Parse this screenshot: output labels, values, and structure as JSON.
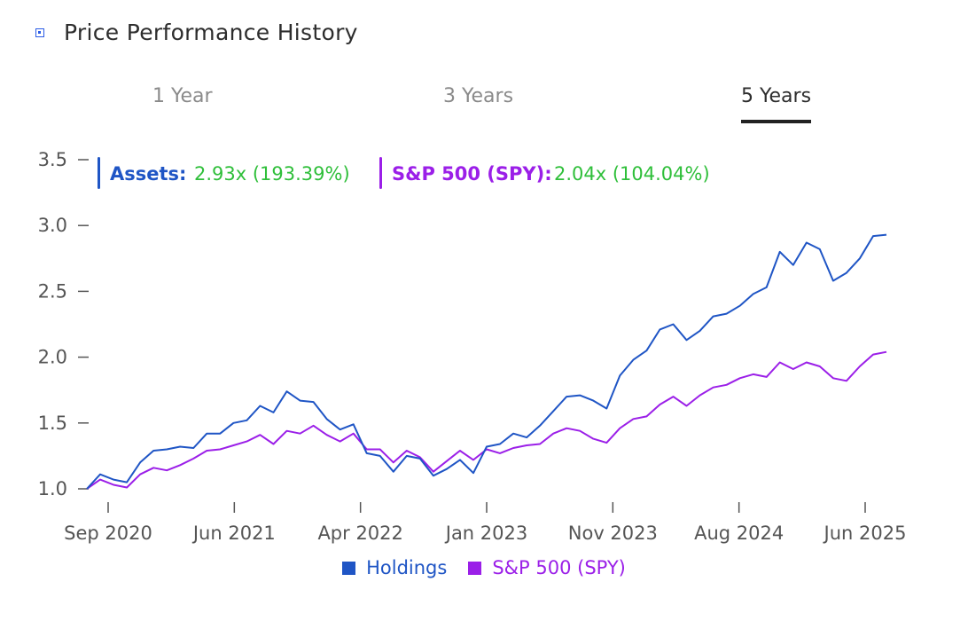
{
  "header": {
    "title": "Price Performance History",
    "icon": "square-dot-icon"
  },
  "tabs": [
    {
      "label": "1 Year",
      "active": false
    },
    {
      "label": "3 Years",
      "active": false
    },
    {
      "label": "5 Years",
      "active": true
    }
  ],
  "colors": {
    "holdings": "#1f55c5",
    "spy": "#9b1fe8",
    "value_green": "#2fbf3a"
  },
  "tooltip": {
    "assets": {
      "label": "Assets:",
      "value": "2.93x (193.39%)"
    },
    "spy": {
      "label": "S&P 500 (SPY):",
      "value": "2.04x (104.04%)"
    }
  },
  "chart_data": {
    "type": "line",
    "title": "",
    "xlabel": "",
    "ylabel": "",
    "ylim": [
      1.0,
      3.5
    ],
    "y_ticks": [
      "1.0",
      "1.5",
      "2.0",
      "2.5",
      "3.0",
      "3.5"
    ],
    "x_ticks": [
      "Sep 2020",
      "Jun 2021",
      "Apr 2022",
      "Jan 2023",
      "Nov 2023",
      "Aug 2024",
      "Jun 2025"
    ],
    "grid": false,
    "legend_position": "bottom",
    "series": [
      {
        "name": "Holdings",
        "values": [
          1.0,
          1.11,
          1.07,
          1.05,
          1.2,
          1.29,
          1.3,
          1.32,
          1.31,
          1.42,
          1.42,
          1.5,
          1.52,
          1.63,
          1.58,
          1.74,
          1.67,
          1.66,
          1.53,
          1.45,
          1.49,
          1.27,
          1.25,
          1.13,
          1.25,
          1.23,
          1.1,
          1.15,
          1.22,
          1.12,
          1.32,
          1.34,
          1.42,
          1.39,
          1.48,
          1.59,
          1.7,
          1.71,
          1.67,
          1.61,
          1.86,
          1.98,
          2.05,
          2.21,
          2.25,
          2.13,
          2.2,
          2.31,
          2.33,
          2.39,
          2.48,
          2.53,
          2.8,
          2.7,
          2.87,
          2.82,
          2.58,
          2.64,
          2.75,
          2.92,
          2.93
        ]
      },
      {
        "name": "S&P 500 (SPY)",
        "values": [
          1.0,
          1.07,
          1.03,
          1.01,
          1.11,
          1.16,
          1.14,
          1.18,
          1.23,
          1.29,
          1.3,
          1.33,
          1.36,
          1.41,
          1.34,
          1.44,
          1.42,
          1.48,
          1.41,
          1.36,
          1.42,
          1.3,
          1.3,
          1.2,
          1.29,
          1.24,
          1.13,
          1.21,
          1.29,
          1.22,
          1.3,
          1.27,
          1.31,
          1.33,
          1.34,
          1.42,
          1.46,
          1.44,
          1.38,
          1.35,
          1.46,
          1.53,
          1.55,
          1.64,
          1.7,
          1.63,
          1.71,
          1.77,
          1.79,
          1.84,
          1.87,
          1.85,
          1.96,
          1.91,
          1.96,
          1.93,
          1.84,
          1.82,
          1.93,
          2.02,
          2.04
        ]
      }
    ]
  }
}
